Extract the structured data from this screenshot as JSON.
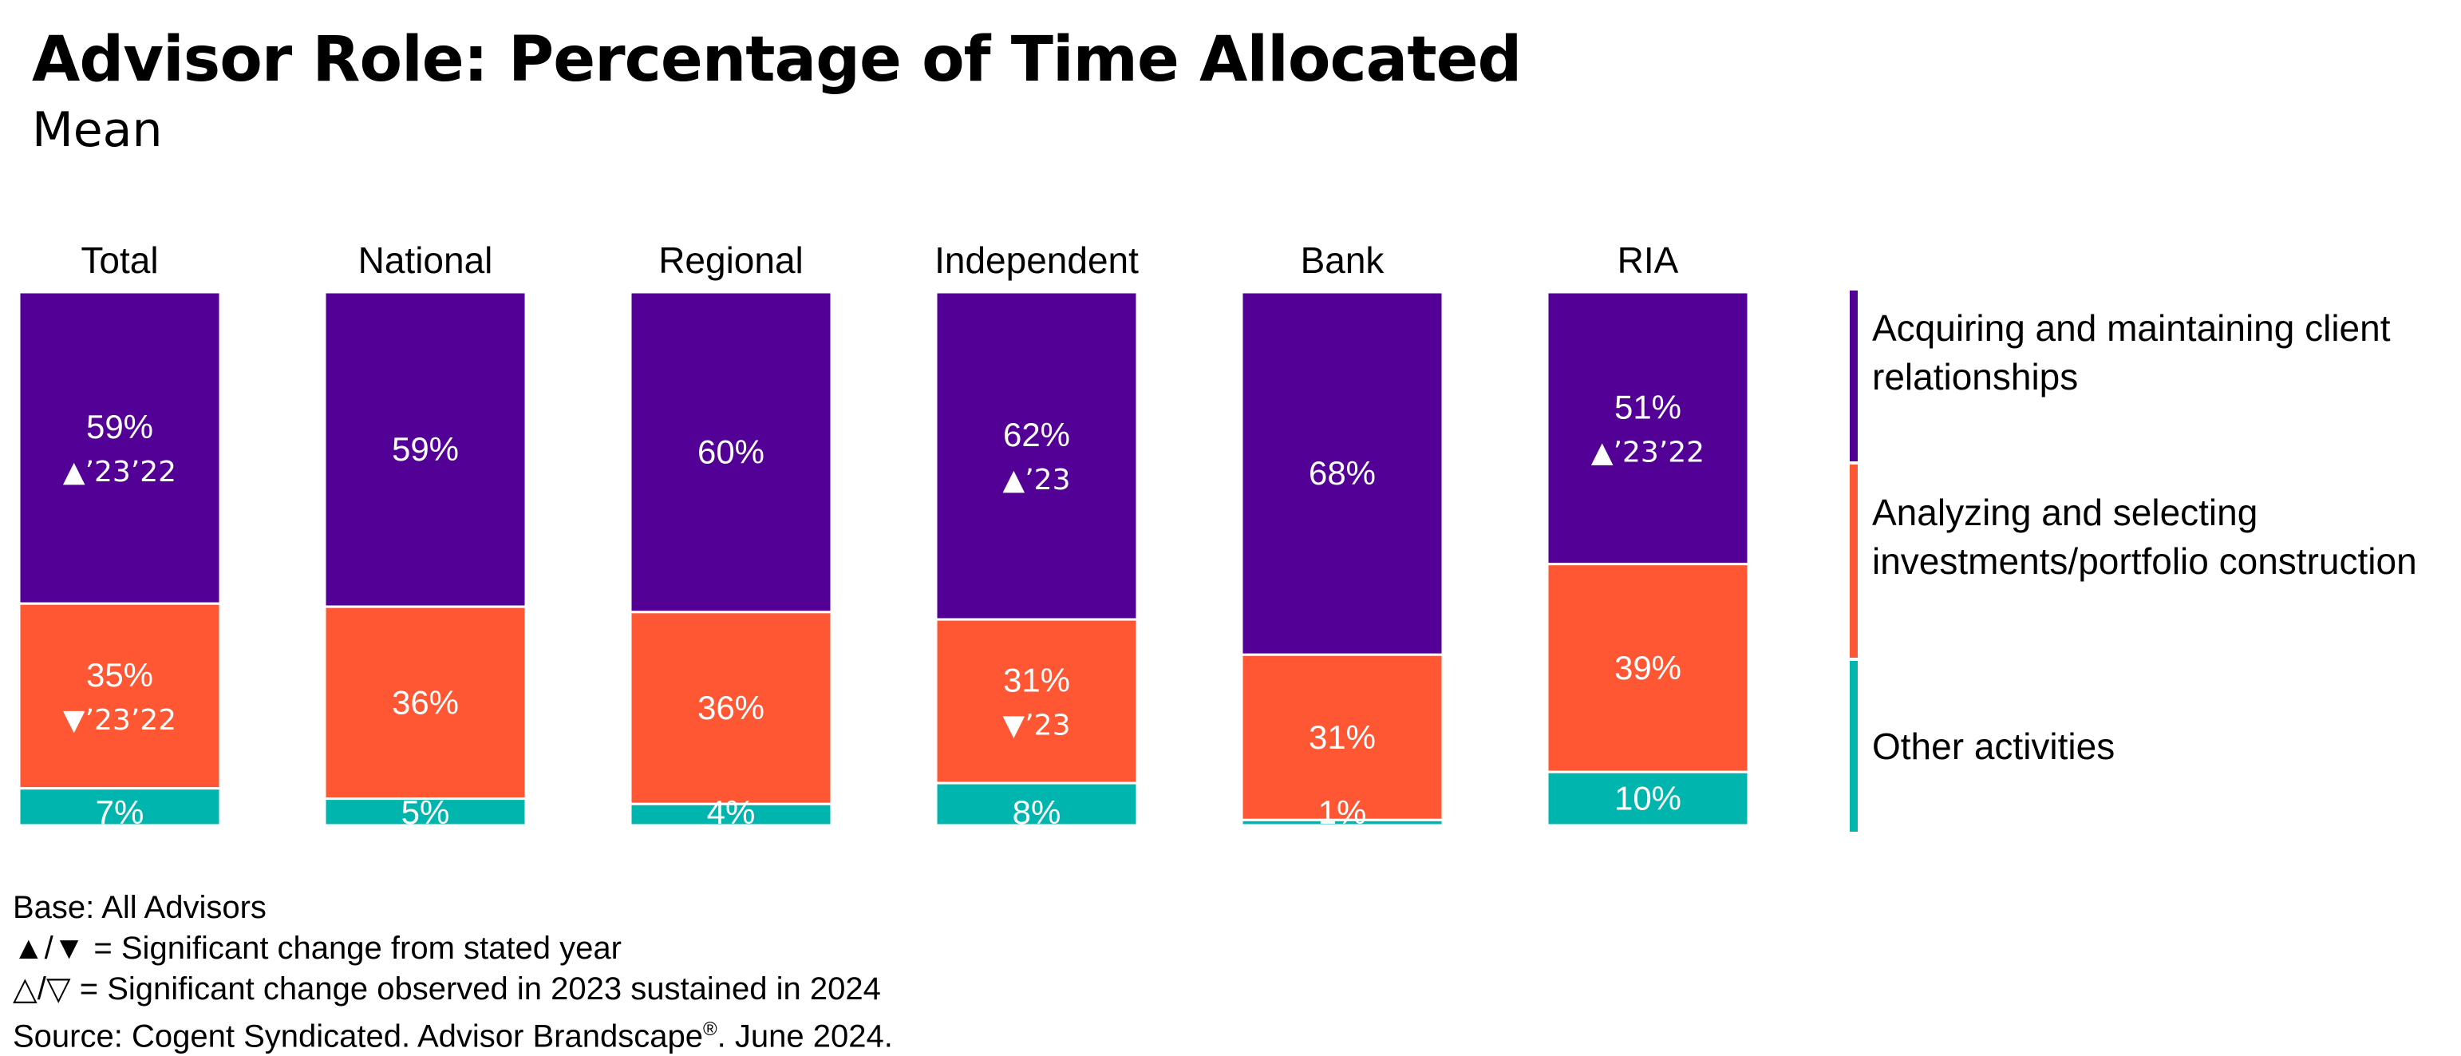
{
  "title": "Advisor Role: Percentage of Time Allocated",
  "subtitle": "Mean",
  "chart_data": {
    "type": "bar",
    "stacked": true,
    "percent_stacked": true,
    "categories": [
      "Total",
      "National",
      "Regional",
      "Independent",
      "Bank",
      "RIA"
    ],
    "series": [
      {
        "name": "Acquiring and maintaining client relationships",
        "color": "#520096",
        "values": [
          59,
          59,
          60,
          62,
          68,
          51
        ],
        "labels": [
          "59%",
          "59%",
          "60%",
          "62%",
          "68%",
          "51%"
        ],
        "annotations": [
          "▲’23’22",
          "",
          "",
          "▲’23",
          "",
          "▲’23’22"
        ]
      },
      {
        "name": "Analyzing and selecting investments/portfolio construction",
        "color": "#FF5733",
        "values": [
          35,
          36,
          36,
          31,
          31,
          39
        ],
        "labels": [
          "35%",
          "36%",
          "36%",
          "31%",
          "31%",
          "39%"
        ],
        "annotations": [
          "▼’23’22",
          "",
          "",
          "▼’23",
          "",
          ""
        ]
      },
      {
        "name": "Other activities",
        "color": "#00B5AD",
        "values": [
          7,
          5,
          4,
          8,
          1,
          10
        ],
        "labels": [
          "7%",
          "5%",
          "4%",
          "8%",
          "1%",
          "10%"
        ],
        "annotations": [
          "",
          "",
          "",
          "",
          "",
          ""
        ]
      }
    ],
    "legend_position": "right",
    "grid": false,
    "ylim": [
      0,
      100
    ]
  },
  "footnotes": {
    "base": "Base: All Advisors",
    "significant": "▲/▼ = Significant change from stated year",
    "sustained": "△/▽ = Significant change observed in 2023 sustained in 2024",
    "source_prefix": "Source: Cogent Syndicated. Advisor Brandscape",
    "source_reg": "®",
    "source_suffix": ". June 2024."
  }
}
